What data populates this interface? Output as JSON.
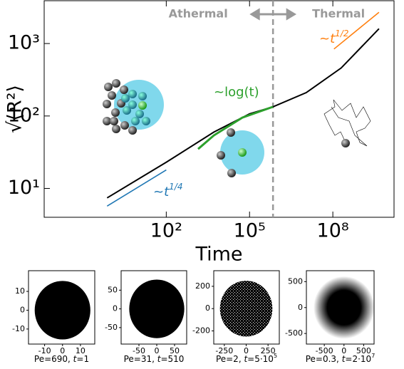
{
  "chart_data": [
    {
      "type": "line",
      "x_label": "Time",
      "y_label": "√⟨R²⟩",
      "log_x": true,
      "log_y": true,
      "xlim": [
        0.004,
        16000000000
      ],
      "ylim": [
        4,
        3900
      ],
      "xticks": [
        {
          "value": 100,
          "label": "10²"
        },
        {
          "value": 100000,
          "label": "10⁵"
        },
        {
          "value": 100000000,
          "label": "10⁸"
        }
      ],
      "yticks": [
        {
          "value": 10,
          "label": "10¹"
        },
        {
          "value": 100,
          "label": "10²"
        },
        {
          "value": 1000,
          "label": "10³"
        }
      ],
      "series": [
        {
          "color": "#000000",
          "x": [
            0.74,
            100,
            5200,
            100000,
            700000,
            11000000,
            200000000,
            4600000000
          ],
          "values": [
            7.4,
            23,
            60,
            107,
            134,
            210,
            460,
            1600
          ]
        },
        {
          "color": "#2ca02c",
          "x": [
            1400,
            5200,
            55000,
            700000
          ],
          "values": [
            35,
            54,
            95,
            134
          ]
        },
        {
          "color": "#1f77b4",
          "x": [
            0.74,
            100
          ],
          "values": [
            5.7,
            18
          ]
        },
        {
          "color": "#ff7f0e",
          "x": [
            110000000,
            4600000000
          ],
          "values": [
            840,
            2700
          ]
        }
      ],
      "crossover": 700000,
      "regions": [
        "Athermal",
        "Thermal"
      ],
      "annotations": [
        {
          "text": "~log(t)",
          "color": "#2ca02c"
        },
        {
          "text": "~t",
          "exponent": "1/4",
          "color": "#1f77b4"
        },
        {
          "text": "~t",
          "exponent": "1/2",
          "color": "#ff7f0e"
        }
      ]
    },
    {
      "type": "scatter",
      "xlim": [
        -19,
        18
      ],
      "ylim": [
        -18,
        21
      ],
      "xticks": [
        -10,
        0,
        10
      ],
      "yticks": [
        -10,
        0,
        10
      ],
      "caption": {
        "pe": "Pe=690, ",
        "t": "t",
        "rest": "=1"
      }
    },
    {
      "type": "scatter",
      "xlim": [
        -100,
        84
      ],
      "ylim": [
        -94,
        102
      ],
      "xticks": [
        -50,
        0,
        50
      ],
      "yticks": [
        -50,
        0,
        50
      ],
      "caption": {
        "pe": "Pe=31, ",
        "t": "t",
        "rest": "=510"
      }
    },
    {
      "type": "scatter",
      "xlim": [
        -371,
        379
      ],
      "ylim": [
        -318,
        340
      ],
      "xticks": [
        -250,
        0,
        250
      ],
      "yticks": [
        -200,
        0,
        200
      ],
      "caption": {
        "pe": "Pe=2, ",
        "t": "t",
        "rest": "=5·10",
        "exp": "5"
      }
    },
    {
      "type": "scatter",
      "xlim": [
        -955,
        764
      ],
      "ylim": [
        -704,
        711
      ],
      "xticks": [
        -500,
        0,
        500
      ],
      "yticks": [
        -500,
        0,
        500
      ],
      "caption": {
        "pe": "Pe=0.3, ",
        "t": "t",
        "rest": "=2·10",
        "exp": "7"
      }
    }
  ]
}
